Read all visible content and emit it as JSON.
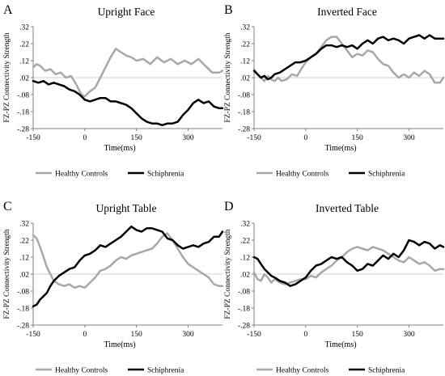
{
  "colors": {
    "healthy": "#a8a8a8",
    "schizo": "#000000",
    "zero_line": "#d0d0d0",
    "axis": "#808080"
  },
  "legend": [
    "Healthy Controls",
    "Schiphrenia"
  ],
  "chart_data": [
    {
      "letter": "A",
      "title": "Upright Face",
      "type": "line",
      "xlabel": "Time(ms)",
      "ylabel": "FZ-PZ Connectivity Strength",
      "xlim": [
        -150,
        400
      ],
      "ylim": [
        -0.28,
        0.32
      ],
      "xticks": [
        -150,
        0,
        150,
        300
      ],
      "yticks": [
        -0.28,
        -0.18,
        -0.08,
        0.02,
        0.12,
        0.22,
        0.32
      ],
      "zero_line": 0.02,
      "grid": false,
      "legend_position": "below",
      "series": [
        {
          "name": "Healthy Controls",
          "color_key": "healthy",
          "x": [
            -150,
            -140,
            -130,
            -115,
            -100,
            -85,
            -70,
            -55,
            -40,
            -25,
            -10,
            0,
            15,
            30,
            45,
            60,
            75,
            90,
            105,
            120,
            135,
            150,
            170,
            190,
            210,
            230,
            250,
            270,
            290,
            310,
            330,
            350,
            370,
            390,
            400
          ],
          "y": [
            0.08,
            0.1,
            0.09,
            0.06,
            0.07,
            0.04,
            0.05,
            0.02,
            0.03,
            -0.02,
            -0.08,
            -0.09,
            -0.06,
            -0.04,
            0.02,
            0.08,
            0.14,
            0.19,
            0.17,
            0.15,
            0.14,
            0.12,
            0.13,
            0.1,
            0.14,
            0.11,
            0.13,
            0.1,
            0.12,
            0.1,
            0.13,
            0.09,
            0.05,
            0.05,
            0.06
          ]
        },
        {
          "name": "Schiphrenia",
          "color_key": "schizo",
          "x": [
            -150,
            -135,
            -120,
            -105,
            -90,
            -75,
            -60,
            -45,
            -30,
            -15,
            0,
            15,
            30,
            45,
            60,
            75,
            90,
            105,
            120,
            135,
            150,
            165,
            180,
            195,
            210,
            225,
            240,
            255,
            270,
            285,
            300,
            315,
            330,
            345,
            360,
            375,
            390,
            400
          ],
          "y": [
            0.0,
            -0.01,
            0.0,
            -0.02,
            -0.01,
            -0.02,
            -0.03,
            -0.05,
            -0.06,
            -0.08,
            -0.11,
            -0.12,
            -0.11,
            -0.1,
            -0.1,
            -0.12,
            -0.12,
            -0.13,
            -0.14,
            -0.16,
            -0.19,
            -0.22,
            -0.24,
            -0.25,
            -0.25,
            -0.26,
            -0.25,
            -0.25,
            -0.24,
            -0.2,
            -0.17,
            -0.13,
            -0.11,
            -0.13,
            -0.12,
            -0.15,
            -0.16,
            -0.16
          ]
        }
      ]
    },
    {
      "letter": "B",
      "title": "Inverted Face",
      "type": "line",
      "xlabel": "Time(ms)",
      "ylabel": "FZ-PZ Connectivity Strength",
      "xlim": [
        -150,
        400
      ],
      "ylim": [
        -0.28,
        0.32
      ],
      "xticks": [
        -150,
        0,
        150,
        300
      ],
      "yticks": [
        -0.28,
        -0.18,
        -0.08,
        0.02,
        0.12,
        0.22,
        0.32
      ],
      "zero_line": 0.02,
      "grid": false,
      "legend_position": "below",
      "series": [
        {
          "name": "Healthy Controls",
          "color_key": "healthy",
          "x": [
            -150,
            -140,
            -130,
            -120,
            -110,
            -100,
            -90,
            -80,
            -70,
            -55,
            -40,
            -25,
            -10,
            0,
            15,
            30,
            45,
            60,
            75,
            90,
            105,
            120,
            135,
            150,
            165,
            180,
            195,
            210,
            225,
            240,
            255,
            270,
            285,
            300,
            315,
            330,
            345,
            360,
            375,
            390,
            400
          ],
          "y": [
            0.07,
            0.04,
            0.02,
            0.0,
            0.03,
            0.01,
            0.0,
            0.02,
            0.0,
            0.01,
            0.04,
            0.03,
            0.08,
            0.11,
            0.14,
            0.16,
            0.2,
            0.24,
            0.26,
            0.26,
            0.22,
            0.18,
            0.14,
            0.16,
            0.15,
            0.18,
            0.17,
            0.13,
            0.1,
            0.09,
            0.05,
            0.02,
            0.04,
            0.02,
            0.05,
            0.03,
            0.06,
            0.04,
            -0.01,
            -0.01,
            0.02
          ]
        },
        {
          "name": "Schiphrenia",
          "color_key": "schizo",
          "x": [
            -150,
            -140,
            -130,
            -120,
            -110,
            -100,
            -90,
            -75,
            -60,
            -45,
            -30,
            -15,
            0,
            15,
            30,
            45,
            60,
            75,
            90,
            105,
            120,
            135,
            150,
            165,
            180,
            195,
            210,
            225,
            240,
            255,
            270,
            285,
            300,
            315,
            330,
            345,
            360,
            375,
            390,
            400
          ],
          "y": [
            0.06,
            0.04,
            0.02,
            0.03,
            0.01,
            0.02,
            0.04,
            0.05,
            0.07,
            0.09,
            0.11,
            0.11,
            0.12,
            0.14,
            0.16,
            0.19,
            0.21,
            0.21,
            0.2,
            0.21,
            0.2,
            0.21,
            0.19,
            0.22,
            0.24,
            0.22,
            0.25,
            0.26,
            0.24,
            0.25,
            0.24,
            0.22,
            0.25,
            0.26,
            0.27,
            0.25,
            0.27,
            0.25,
            0.25,
            0.25
          ]
        }
      ]
    },
    {
      "letter": "C",
      "title": "Upright Table",
      "type": "line",
      "xlabel": "Time(ms)",
      "ylabel": "FZ-PZ Connectivity Strength",
      "xlim": [
        -150,
        400
      ],
      "ylim": [
        -0.28,
        0.32
      ],
      "xticks": [
        -150,
        0,
        150,
        300
      ],
      "yticks": [
        -0.28,
        -0.18,
        -0.08,
        0.02,
        0.12,
        0.22,
        0.32
      ],
      "zero_line": 0.02,
      "grid": false,
      "legend_position": "below",
      "series": [
        {
          "name": "Healthy Controls",
          "color_key": "healthy",
          "x": [
            -150,
            -140,
            -130,
            -120,
            -110,
            -100,
            -90,
            -75,
            -60,
            -45,
            -30,
            -15,
            0,
            15,
            30,
            45,
            60,
            75,
            90,
            105,
            120,
            135,
            150,
            165,
            180,
            195,
            210,
            225,
            240,
            255,
            270,
            285,
            300,
            315,
            330,
            345,
            360,
            375,
            390,
            400
          ],
          "y": [
            0.25,
            0.23,
            0.18,
            0.12,
            0.06,
            0.02,
            -0.02,
            -0.04,
            -0.05,
            -0.04,
            -0.06,
            -0.05,
            -0.06,
            -0.03,
            0.0,
            0.04,
            0.05,
            0.07,
            0.1,
            0.12,
            0.11,
            0.13,
            0.14,
            0.15,
            0.16,
            0.17,
            0.2,
            0.24,
            0.26,
            0.22,
            0.17,
            0.12,
            0.08,
            0.06,
            0.04,
            0.02,
            0.0,
            -0.04,
            -0.05,
            -0.05
          ]
        },
        {
          "name": "Schiphrenia",
          "color_key": "schizo",
          "x": [
            -150,
            -140,
            -130,
            -120,
            -110,
            -100,
            -90,
            -75,
            -60,
            -45,
            -30,
            -15,
            0,
            15,
            30,
            45,
            60,
            75,
            90,
            105,
            120,
            135,
            150,
            165,
            180,
            195,
            210,
            225,
            240,
            255,
            270,
            285,
            300,
            315,
            330,
            345,
            360,
            375,
            390,
            400
          ],
          "y": [
            -0.17,
            -0.16,
            -0.13,
            -0.11,
            -0.09,
            -0.05,
            -0.02,
            0.01,
            0.03,
            0.05,
            0.06,
            0.1,
            0.13,
            0.14,
            0.16,
            0.19,
            0.18,
            0.2,
            0.22,
            0.24,
            0.27,
            0.3,
            0.28,
            0.27,
            0.29,
            0.29,
            0.28,
            0.27,
            0.23,
            0.22,
            0.19,
            0.17,
            0.18,
            0.19,
            0.18,
            0.2,
            0.21,
            0.24,
            0.24,
            0.27
          ]
        }
      ]
    },
    {
      "letter": "D",
      "title": "Inverted Table",
      "type": "line",
      "xlabel": "Time(ms)",
      "ylabel": "FZ-PZ Connectivity Strength",
      "xlim": [
        -150,
        400
      ],
      "ylim": [
        -0.28,
        0.32
      ],
      "xticks": [
        -150,
        0,
        150,
        300
      ],
      "yticks": [
        -0.28,
        -0.18,
        -0.08,
        0.02,
        0.12,
        0.22,
        0.32
      ],
      "zero_line": 0.02,
      "grid": false,
      "legend_position": "below",
      "series": [
        {
          "name": "Healthy Controls",
          "color_key": "healthy",
          "x": [
            -150,
            -140,
            -130,
            -120,
            -110,
            -100,
            -90,
            -75,
            -60,
            -45,
            -30,
            -15,
            0,
            15,
            30,
            45,
            60,
            75,
            90,
            105,
            120,
            135,
            150,
            165,
            180,
            195,
            210,
            225,
            240,
            255,
            270,
            285,
            300,
            315,
            330,
            345,
            360,
            375,
            390,
            400
          ],
          "y": [
            0.03,
            -0.01,
            -0.02,
            0.02,
            0.0,
            -0.03,
            -0.01,
            -0.03,
            -0.04,
            -0.03,
            -0.02,
            -0.01,
            -0.01,
            0.01,
            0.0,
            0.03,
            0.05,
            0.07,
            0.1,
            0.12,
            0.15,
            0.17,
            0.18,
            0.17,
            0.16,
            0.18,
            0.17,
            0.16,
            0.14,
            0.12,
            0.1,
            0.09,
            0.12,
            0.1,
            0.08,
            0.09,
            0.07,
            0.04,
            0.05,
            0.05
          ]
        },
        {
          "name": "Schiphrenia",
          "color_key": "schizo",
          "x": [
            -150,
            -140,
            -130,
            -120,
            -110,
            -100,
            -90,
            -75,
            -60,
            -45,
            -30,
            -15,
            0,
            15,
            30,
            45,
            60,
            75,
            90,
            105,
            120,
            135,
            150,
            165,
            180,
            195,
            210,
            225,
            240,
            255,
            270,
            285,
            300,
            315,
            330,
            345,
            360,
            375,
            390,
            400
          ],
          "y": [
            0.12,
            0.11,
            0.08,
            0.05,
            0.03,
            0.01,
            0.0,
            -0.02,
            -0.03,
            -0.05,
            -0.04,
            -0.02,
            0.0,
            0.04,
            0.07,
            0.08,
            0.1,
            0.12,
            0.11,
            0.12,
            0.09,
            0.07,
            0.04,
            0.05,
            0.08,
            0.07,
            0.1,
            0.13,
            0.11,
            0.14,
            0.12,
            0.16,
            0.22,
            0.21,
            0.19,
            0.21,
            0.2,
            0.17,
            0.19,
            0.18
          ]
        }
      ]
    }
  ]
}
